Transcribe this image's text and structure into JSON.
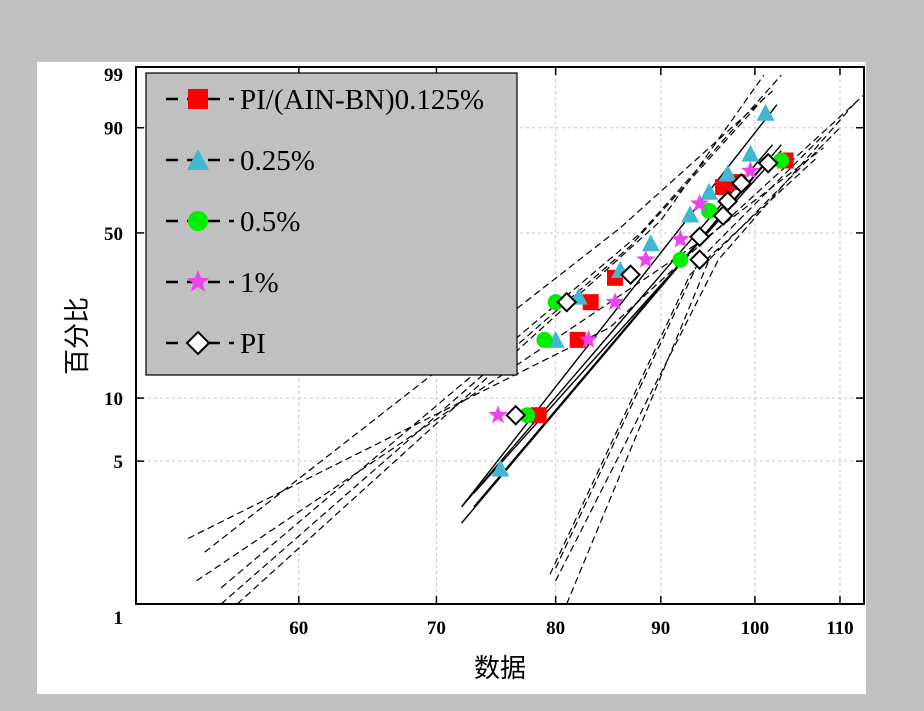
{
  "chart_data": {
    "type": "scatter",
    "subtype": "weibull-probability-plot",
    "title": "",
    "xlabel": "数据",
    "ylabel": "百分比",
    "xlim": [
      50,
      113
    ],
    "ylim_percent": [
      1,
      99
    ],
    "x_ticks": [
      60,
      70,
      80,
      90,
      100,
      110
    ],
    "y_ticks": [
      1,
      5,
      10,
      50,
      90,
      99
    ],
    "grid": true,
    "legend_position": "top-left",
    "colors": {
      "page_background": "#c0c0c0",
      "plot_background": "#ffffff",
      "legend_background": "#c0c0c0",
      "grid": "#c8c8c8",
      "fit_line": "#000000"
    },
    "series": [
      {
        "name": "PI/(AIN-BN)0.125%",
        "marker": "square",
        "color": "#ff0000",
        "x": [
          78.5,
          82,
          83.2,
          85.5,
          96.5,
          98,
          103.5
        ],
        "y": [
          8.3,
          18.5,
          27.0,
          34.0,
          69.0,
          71.0,
          79.5
        ],
        "fit": {
          "x": [
            73,
            103
          ],
          "y": [
            3.5,
            83
          ],
          "ci_lower_x": [
            53.5,
            95,
            108
          ],
          "ci_lower_y": [
            1.3,
            49,
            84
          ],
          "ci_upper_x": [
            53,
            85,
            113
          ],
          "ci_upper_y": [
            2.1,
            21,
            96.5
          ]
        }
      },
      {
        "name": "0.25%",
        "marker": "triangle",
        "color": "#40b8d0",
        "x": [
          75.2,
          80,
          82.1,
          86,
          89,
          93,
          95,
          97,
          99.5,
          101.2
        ],
        "y": [
          4.6,
          18.5,
          28.5,
          36.5,
          46.0,
          57.5,
          67.0,
          74.5,
          82.0,
          93.5
        ],
        "fit": {
          "x": [
            72,
            102.5
          ],
          "y": [
            3.0,
            95.0
          ],
          "ci_lower_x": [
            80,
            96,
            112
          ],
          "ci_lower_y": [
            1.3,
            40,
            95.5
          ],
          "ci_upper_x": [
            56,
            90,
            101
          ],
          "ci_upper_y": [
            1.0,
            55,
            98.5
          ]
        }
      },
      {
        "name": "0.5%",
        "marker": "circle",
        "color": "#00ee00",
        "x": [
          77.5,
          79,
          80,
          92,
          95,
          103
        ],
        "y": [
          8.3,
          18.5,
          27.0,
          40.0,
          59.0,
          79.5
        ],
        "fit": {
          "x": [
            72,
            103
          ],
          "y": [
            2.5,
            85
          ],
          "ci_lower_x": [
            81,
            95,
            110
          ],
          "ci_lower_y": [
            1.0,
            40,
            90
          ],
          "ci_upper_x": [
            55,
            88,
            103
          ],
          "ci_upper_y": [
            1.2,
            50,
            98.5
          ]
        }
      },
      {
        "name": "1%",
        "marker": "star",
        "color": "#ee44ee",
        "x": [
          75,
          83,
          85.5,
          88.5,
          92,
          94,
          99.5
        ],
        "y": [
          8.3,
          18.5,
          27.0,
          40.0,
          47.5,
          62.0,
          75.5
        ],
        "fit": {
          "x": [
            72,
            102
          ],
          "y": [
            3.0,
            85
          ],
          "ci_lower_x": [
            80,
            94,
            108
          ],
          "ci_lower_y": [
            1.5,
            40,
            88
          ],
          "ci_upper_x": [
            54,
            86,
            102
          ],
          "ci_upper_y": [
            1.8,
            52,
            97
          ]
        }
      },
      {
        "name": "PI",
        "marker": "diamond",
        "color": "#ffffff",
        "x": [
          76.5,
          81,
          87,
          94,
          94,
          96.5,
          97,
          98.5,
          101.5
        ],
        "y": [
          8.3,
          27.0,
          35.0,
          40.0,
          48.5,
          57.0,
          63.0,
          70.5,
          78.5
        ],
        "fit": {
          "x": [
            73,
            101.5
          ],
          "y": [
            3.0,
            80
          ],
          "ci_lower_x": [
            79.5,
            93,
            107
          ],
          "ci_lower_y": [
            1.4,
            35,
            80
          ],
          "ci_upper_x": [
            55,
            87,
            101
          ],
          "ci_upper_y": [
            1.0,
            45,
            96
          ]
        }
      }
    ]
  }
}
